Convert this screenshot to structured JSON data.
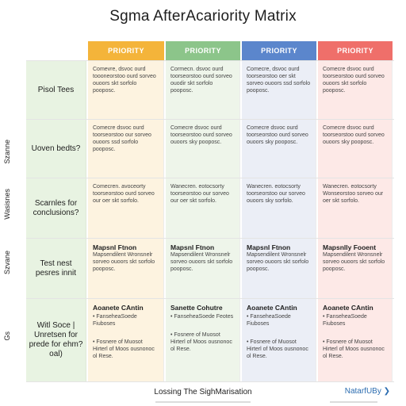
{
  "title": "Sgma AfterAcariority Matrix",
  "columns": [
    "PRIORITY",
    "PRIORITY",
    "PRIORITY",
    "PRIORITY"
  ],
  "side_labels": [
    "Szanne",
    "Wasisnes",
    "Szvane",
    "Gs"
  ],
  "rows": [
    {
      "label": "Pisol Tees",
      "cells": [
        {
          "head": "",
          "text": "Comevre, dsvoc ourd toooneorstoo ourd sorveo ouoors skt sorfolo pooposc."
        },
        {
          "head": "",
          "text": "Cormecn. dsvoc ourd toorseorstoo ourd sorveo ouodir skt sorfolo pooposc."
        },
        {
          "head": "",
          "text": "Comecre, dsvoc ourd toorseorstoo oer skt sorveo ouoors ssd sorfolo pooposc."
        },
        {
          "head": "",
          "text": "Comecre dsvoc ourd toorseorstoo ourd sorveo ouoors skt sorfolo pooposc."
        }
      ]
    },
    {
      "label": "Uoven bedts?",
      "cells": [
        {
          "head": "",
          "text": "Comecre dsvoc ourd toorseorstoo our sorveo ouoors ssd sorfolo pooposc."
        },
        {
          "head": "",
          "text": "Comecre dsvoc ourd toorseorstoo ourd sorveo ouoors sky pooposc."
        },
        {
          "head": "",
          "text": "Comecre dsvoc ourd toorseorstoo ourd sorveo ouoors sky pooposc."
        },
        {
          "head": "",
          "text": "Comecre dsvoc ourd toorseorstoo ourd sorveo ouoors sky pooposc."
        }
      ]
    },
    {
      "label": "Scarnles for conclusions?",
      "cells": [
        {
          "head": "",
          "text": "Comecren. avoceorty toorseorstoo ourd sorveo our oer skt sorfolo."
        },
        {
          "head": "",
          "text": "Wanecren. eotocsorty toorseorstoo our sorveo our oer skt sorfolo."
        },
        {
          "head": "",
          "text": "Wanecren. eotocsorty toorseorstoo our sorveo ouoors sky sorfolo."
        },
        {
          "head": "",
          "text": "Wanecren. eotocsorty Wonseorstoo sorveo our oer skt sorfolo."
        }
      ]
    },
    {
      "label": "Test nest pesres innit",
      "cells": [
        {
          "head": "Mapsnl Ftnon",
          "text": "Mapsendilent Wronsnelr sorveo ouoors skt sorfolo pooposc."
        },
        {
          "head": "Mapsnl Ftnon",
          "text": "Mapsendilent Wronsnelr sorveo ouoors skt sorfolo pooposc."
        },
        {
          "head": "Mapsnl Ftnon",
          "text": "Mapsendilent Wronsnelr sorveo ouoors skt sorfolo pooposc."
        },
        {
          "head": "Mapsnlly Fooent",
          "text": "Mapsendilent Wronsnelr sorveo ouoors skt sorfolo pooposc."
        }
      ]
    },
    {
      "label": "Witl Soce | Unretsen for prede for ehm? oal)",
      "cells": [
        {
          "head": "Aoanete CAntin",
          "text": "• FanseheaSoede Fiuboses",
          "note": "• Fosnere of Muosot Hirterl of Moos ousnonoc ol Rese."
        },
        {
          "head": "Sanette Cohutre",
          "text": "• FanseheaSoede Feotes",
          "note": "• Fosnere of Muosot Hirterl of Moos ousnonoc ol Rese."
        },
        {
          "head": "Aoanete CAntin",
          "text": "• FanseheaSoede Fiuboses",
          "note": "• Fosnere of Muosot Hirterl of Moos ousnonoc ol Rese."
        },
        {
          "head": "Aoanete CAntin",
          "text": "• FanseheaSoede Fiuboses",
          "note": "• Fosnere of Muosot Hirterl of Moos ousnonoc ol Rese."
        }
      ]
    }
  ],
  "footer": {
    "center": "Lossing The SighMarisation",
    "right": "NatarfUBy ❯"
  }
}
